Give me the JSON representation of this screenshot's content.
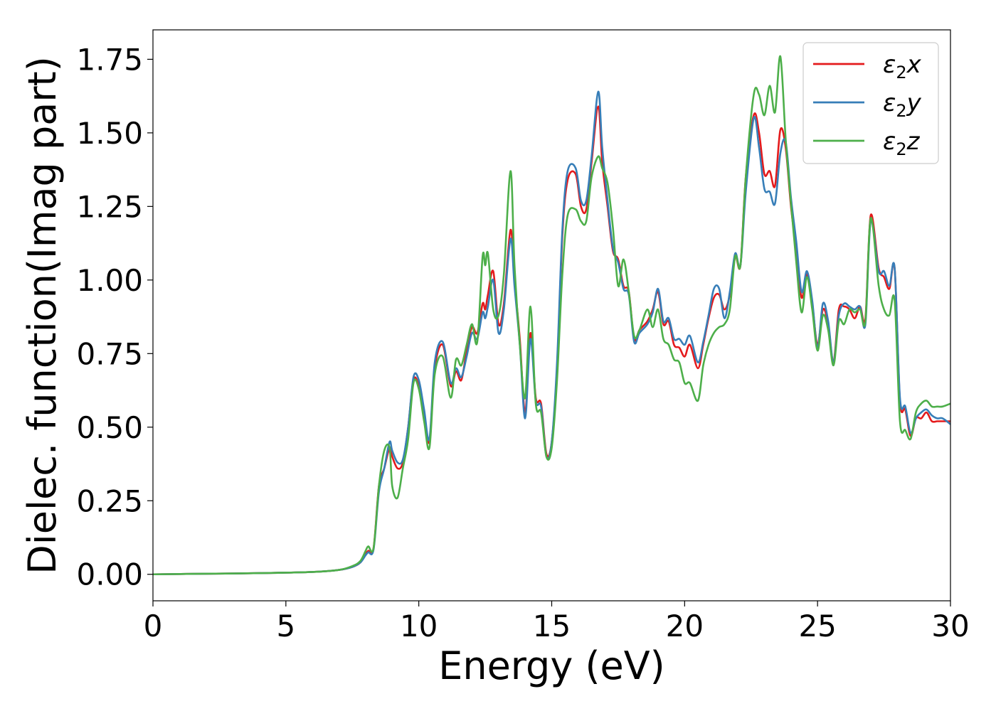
{
  "chart_data": {
    "type": "line",
    "xlabel": "Energy (eV)",
    "ylabel": "Dielec. function(Imag part)",
    "xlim": [
      0,
      30
    ],
    "ylim": [
      -0.09,
      1.85
    ],
    "xticks": [
      0,
      5,
      10,
      15,
      20,
      25,
      30
    ],
    "yticks": [
      0.0,
      0.25,
      0.5,
      0.75,
      1.0,
      1.25,
      1.5,
      1.75
    ],
    "xtick_labels": [
      "0",
      "5",
      "10",
      "15",
      "20",
      "25",
      "30"
    ],
    "ytick_labels": [
      "0.00",
      "0.25",
      "0.50",
      "0.75",
      "1.00",
      "1.25",
      "1.50",
      "1.75"
    ],
    "grid": false,
    "legend_position": "top-right",
    "series": [
      {
        "name": "ε₂x",
        "name_base": "ε",
        "name_sub": "2",
        "name_axis": "x",
        "color": "#e41a1c",
        "x": [
          0,
          2,
          4,
          6,
          7,
          7.5,
          7.8,
          8.0,
          8.1,
          8.3,
          8.5,
          8.7,
          8.9,
          9.0,
          9.2,
          9.4,
          9.6,
          9.8,
          10.0,
          10.2,
          10.4,
          10.6,
          10.9,
          11.2,
          11.4,
          11.6,
          11.8,
          12.0,
          12.2,
          12.4,
          12.5,
          12.6,
          12.8,
          13.0,
          13.2,
          13.45,
          13.6,
          13.8,
          14.0,
          14.2,
          14.4,
          14.6,
          14.8,
          15.0,
          15.2,
          15.4,
          15.6,
          15.9,
          16.1,
          16.3,
          16.5,
          16.75,
          16.9,
          17.1,
          17.3,
          17.5,
          17.7,
          17.9,
          18.1,
          18.3,
          18.6,
          18.8,
          19.0,
          19.2,
          19.4,
          19.6,
          19.8,
          20.0,
          20.2,
          20.5,
          20.7,
          20.9,
          21.1,
          21.3,
          21.5,
          21.7,
          21.9,
          22.1,
          22.3,
          22.6,
          22.8,
          23.0,
          23.2,
          23.4,
          23.6,
          23.8,
          24.0,
          24.2,
          24.4,
          24.6,
          24.8,
          25.0,
          25.2,
          25.4,
          25.6,
          25.8,
          26.0,
          26.2,
          26.4,
          26.6,
          26.8,
          27.0,
          27.3,
          27.5,
          27.7,
          27.9,
          28.1,
          28.3,
          28.5,
          28.7,
          28.9,
          29.1,
          29.3,
          29.5,
          29.7,
          30.0
        ],
        "values": [
          0.0,
          0.002,
          0.004,
          0.008,
          0.015,
          0.025,
          0.04,
          0.07,
          0.08,
          0.09,
          0.3,
          0.36,
          0.43,
          0.4,
          0.36,
          0.38,
          0.5,
          0.66,
          0.64,
          0.55,
          0.45,
          0.7,
          0.78,
          0.64,
          0.69,
          0.66,
          0.76,
          0.84,
          0.82,
          0.92,
          0.9,
          0.95,
          1.03,
          0.85,
          0.92,
          1.17,
          1.0,
          0.8,
          0.55,
          0.82,
          0.6,
          0.58,
          0.41,
          0.45,
          0.7,
          1.15,
          1.34,
          1.36,
          1.25,
          1.24,
          1.4,
          1.59,
          1.4,
          1.25,
          1.1,
          1.07,
          0.98,
          0.96,
          0.8,
          0.83,
          0.86,
          0.9,
          0.96,
          0.85,
          0.86,
          0.78,
          0.77,
          0.74,
          0.78,
          0.7,
          0.78,
          0.87,
          0.94,
          0.95,
          0.9,
          0.95,
          1.08,
          1.05,
          1.35,
          1.56,
          1.5,
          1.36,
          1.37,
          1.32,
          1.51,
          1.45,
          1.25,
          1.1,
          0.94,
          1.02,
          0.92,
          0.78,
          0.9,
          0.85,
          0.72,
          0.9,
          0.91,
          0.9,
          0.87,
          0.91,
          0.87,
          1.22,
          1.04,
          1.01,
          0.97,
          1.04,
          0.59,
          0.56,
          0.47,
          0.53,
          0.53,
          0.55,
          0.52,
          0.52,
          0.52,
          0.52
        ]
      },
      {
        "name": "ε₂y",
        "name_base": "ε",
        "name_sub": "2",
        "name_axis": "y",
        "color": "#377eb8",
        "x": [
          0,
          2,
          4,
          6,
          7,
          7.5,
          7.8,
          8.0,
          8.1,
          8.3,
          8.5,
          8.7,
          8.9,
          9.0,
          9.2,
          9.4,
          9.6,
          9.8,
          10.0,
          10.2,
          10.4,
          10.6,
          10.9,
          11.2,
          11.4,
          11.6,
          11.8,
          12.0,
          12.2,
          12.4,
          12.5,
          12.6,
          12.8,
          13.0,
          13.2,
          13.45,
          13.6,
          13.8,
          14.0,
          14.2,
          14.4,
          14.6,
          14.8,
          15.0,
          15.2,
          15.4,
          15.6,
          15.9,
          16.1,
          16.3,
          16.5,
          16.75,
          16.9,
          17.1,
          17.3,
          17.5,
          17.7,
          17.9,
          18.1,
          18.3,
          18.6,
          18.8,
          19.0,
          19.2,
          19.4,
          19.6,
          19.8,
          20.0,
          20.2,
          20.5,
          20.7,
          20.9,
          21.1,
          21.3,
          21.5,
          21.7,
          21.9,
          22.1,
          22.3,
          22.6,
          22.8,
          23.0,
          23.2,
          23.4,
          23.6,
          23.8,
          24.0,
          24.2,
          24.4,
          24.6,
          24.8,
          25.0,
          25.2,
          25.4,
          25.6,
          25.8,
          26.0,
          26.2,
          26.4,
          26.6,
          26.8,
          27.0,
          27.3,
          27.5,
          27.7,
          27.9,
          28.1,
          28.3,
          28.5,
          28.7,
          28.9,
          29.1,
          29.3,
          29.5,
          29.7,
          30.0
        ],
        "values": [
          0.0,
          0.002,
          0.004,
          0.008,
          0.015,
          0.025,
          0.04,
          0.065,
          0.075,
          0.085,
          0.28,
          0.36,
          0.45,
          0.42,
          0.38,
          0.39,
          0.5,
          0.67,
          0.66,
          0.56,
          0.46,
          0.72,
          0.79,
          0.65,
          0.7,
          0.67,
          0.74,
          0.82,
          0.8,
          0.89,
          0.87,
          0.91,
          1.0,
          0.82,
          0.9,
          1.14,
          0.98,
          0.78,
          0.53,
          0.8,
          0.59,
          0.57,
          0.4,
          0.45,
          0.72,
          1.17,
          1.37,
          1.38,
          1.27,
          1.27,
          1.42,
          1.64,
          1.45,
          1.27,
          1.11,
          1.06,
          0.97,
          0.95,
          0.79,
          0.82,
          0.85,
          0.89,
          0.97,
          0.86,
          0.87,
          0.8,
          0.8,
          0.78,
          0.81,
          0.72,
          0.79,
          0.88,
          0.97,
          0.97,
          0.87,
          0.96,
          1.09,
          1.05,
          1.3,
          1.55,
          1.45,
          1.31,
          1.3,
          1.26,
          1.43,
          1.47,
          1.28,
          1.13,
          0.96,
          1.03,
          0.93,
          0.77,
          0.92,
          0.86,
          0.72,
          0.88,
          0.92,
          0.91,
          0.9,
          0.91,
          0.85,
          1.2,
          1.03,
          1.03,
          0.98,
          1.04,
          0.6,
          0.57,
          0.48,
          0.53,
          0.55,
          0.56,
          0.54,
          0.53,
          0.53,
          0.51
        ]
      },
      {
        "name": "ε₂z",
        "name_base": "ε",
        "name_sub": "2",
        "name_axis": "z",
        "color": "#4daf4a",
        "x": [
          0,
          2,
          4,
          6,
          7,
          7.5,
          7.8,
          8.0,
          8.1,
          8.3,
          8.5,
          8.7,
          8.9,
          9.0,
          9.2,
          9.4,
          9.6,
          9.8,
          10.0,
          10.2,
          10.4,
          10.6,
          10.9,
          11.2,
          11.4,
          11.6,
          11.8,
          12.0,
          12.2,
          12.4,
          12.5,
          12.6,
          12.8,
          13.0,
          13.2,
          13.45,
          13.6,
          13.8,
          14.0,
          14.2,
          14.4,
          14.6,
          14.8,
          15.0,
          15.2,
          15.4,
          15.6,
          15.9,
          16.1,
          16.3,
          16.5,
          16.75,
          16.9,
          17.1,
          17.3,
          17.5,
          17.7,
          17.9,
          18.1,
          18.3,
          18.6,
          18.8,
          19.0,
          19.2,
          19.4,
          19.6,
          19.8,
          20.0,
          20.2,
          20.5,
          20.7,
          20.9,
          21.1,
          21.3,
          21.5,
          21.7,
          21.9,
          22.1,
          22.3,
          22.6,
          22.8,
          23.0,
          23.2,
          23.4,
          23.6,
          23.8,
          24.0,
          24.2,
          24.4,
          24.6,
          24.8,
          25.0,
          25.2,
          25.4,
          25.6,
          25.8,
          26.0,
          26.2,
          26.4,
          26.6,
          26.8,
          27.0,
          27.3,
          27.5,
          27.7,
          27.9,
          28.1,
          28.3,
          28.5,
          28.7,
          28.9,
          29.1,
          29.3,
          29.5,
          29.7,
          30.0
        ],
        "values": [
          0.0,
          0.002,
          0.004,
          0.008,
          0.015,
          0.028,
          0.045,
          0.08,
          0.095,
          0.09,
          0.3,
          0.42,
          0.43,
          0.3,
          0.26,
          0.36,
          0.46,
          0.65,
          0.63,
          0.52,
          0.43,
          0.68,
          0.74,
          0.6,
          0.73,
          0.71,
          0.78,
          0.85,
          0.79,
          1.08,
          1.05,
          1.09,
          0.9,
          0.88,
          1.02,
          1.37,
          1.05,
          0.78,
          0.6,
          0.91,
          0.58,
          0.55,
          0.4,
          0.43,
          0.66,
          1.02,
          1.22,
          1.24,
          1.2,
          1.2,
          1.35,
          1.42,
          1.38,
          1.33,
          1.18,
          0.98,
          1.07,
          0.96,
          0.81,
          0.83,
          0.9,
          0.84,
          0.9,
          0.8,
          0.78,
          0.73,
          0.72,
          0.65,
          0.65,
          0.59,
          0.71,
          0.78,
          0.82,
          0.84,
          0.85,
          0.9,
          1.08,
          1.05,
          1.35,
          1.63,
          1.63,
          1.56,
          1.66,
          1.57,
          1.76,
          1.48,
          1.26,
          1.06,
          0.89,
          1.01,
          0.9,
          0.76,
          0.88,
          0.83,
          0.71,
          0.86,
          0.85,
          0.9,
          0.89,
          0.9,
          0.86,
          1.21,
          0.98,
          0.9,
          0.88,
          0.93,
          0.52,
          0.49,
          0.46,
          0.55,
          0.58,
          0.59,
          0.57,
          0.57,
          0.57,
          0.58
        ]
      }
    ]
  }
}
